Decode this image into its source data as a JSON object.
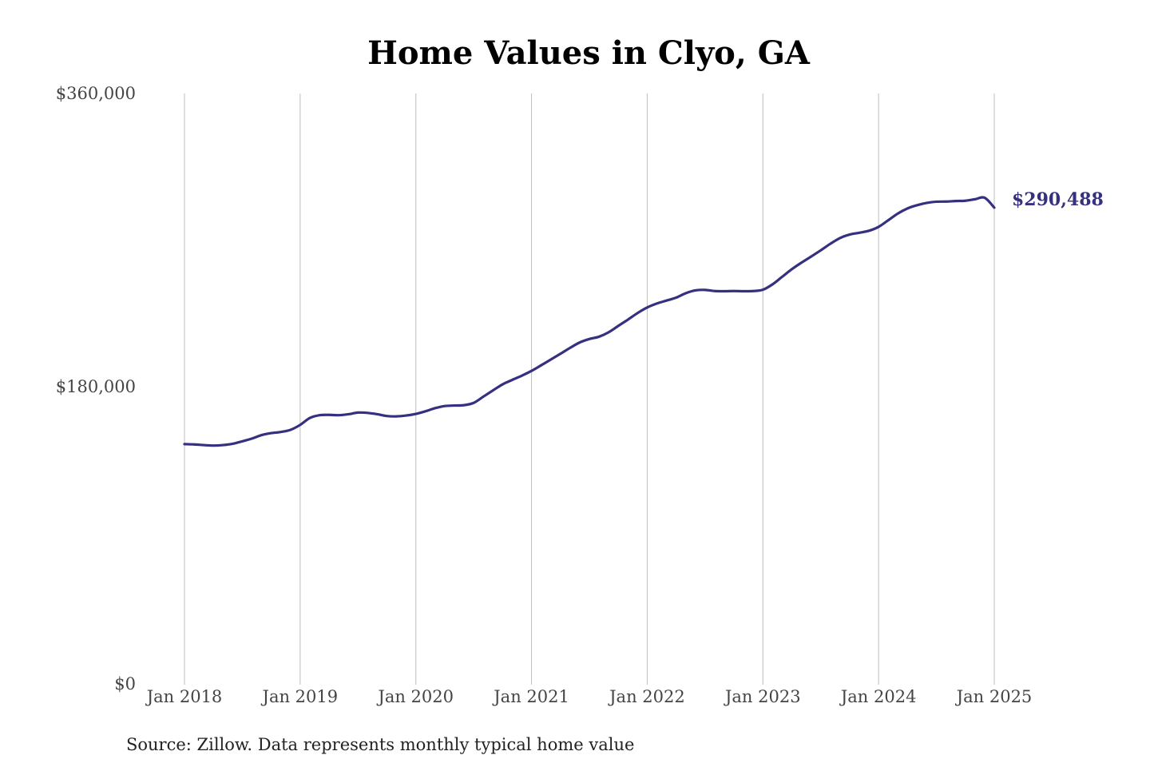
{
  "colors": {
    "line": "#35307f",
    "grid": "#bdbdbd",
    "title": "#000000",
    "tick_text": "#444444"
  },
  "chart_data": {
    "type": "line",
    "title": "Home Values in Clyo, GA",
    "xlabel": "",
    "ylabel": "",
    "source_note": "Source: Zillow. Data represents monthly typical home value",
    "grid": {
      "vertical": true,
      "horizontal": false
    },
    "legend": "none",
    "x_ticks": [
      "Jan 2018",
      "Jan 2019",
      "Jan 2020",
      "Jan 2021",
      "Jan 2022",
      "Jan 2023",
      "Jan 2024",
      "Jan 2025"
    ],
    "y_ticks": [
      "$0",
      "$180,000",
      "$360,000"
    ],
    "ylim": [
      0,
      360000
    ],
    "xlim": [
      "2018-01",
      "2025-01"
    ],
    "end_label": "$290,488",
    "series": [
      {
        "x": [
          "2018-01",
          "2018-02",
          "2018-03",
          "2018-04",
          "2018-05",
          "2018-06",
          "2018-07",
          "2018-08",
          "2018-09",
          "2018-10",
          "2018-11",
          "2018-12",
          "2019-01",
          "2019-02",
          "2019-03",
          "2019-04",
          "2019-05",
          "2019-06",
          "2019-07",
          "2019-08",
          "2019-09",
          "2019-10",
          "2019-11",
          "2019-12",
          "2020-01",
          "2020-02",
          "2020-03",
          "2020-04",
          "2020-05",
          "2020-06",
          "2020-07",
          "2020-08",
          "2020-09",
          "2020-10",
          "2020-11",
          "2020-12",
          "2021-01",
          "2021-02",
          "2021-03",
          "2021-04",
          "2021-05",
          "2021-06",
          "2021-07",
          "2021-08",
          "2021-09",
          "2021-10",
          "2021-11",
          "2021-12",
          "2022-01",
          "2022-02",
          "2022-03",
          "2022-04",
          "2022-05",
          "2022-06",
          "2022-07",
          "2022-08",
          "2022-09",
          "2022-10",
          "2022-11",
          "2022-12",
          "2023-01",
          "2023-02",
          "2023-03",
          "2023-04",
          "2023-05",
          "2023-06",
          "2023-07",
          "2023-08",
          "2023-09",
          "2023-10",
          "2023-11",
          "2023-12",
          "2024-01",
          "2024-02",
          "2024-03",
          "2024-04",
          "2024-05",
          "2024-06",
          "2024-07",
          "2024-08",
          "2024-09",
          "2024-10",
          "2024-11",
          "2024-12",
          "2025-01"
        ],
        "values": [
          146500,
          146300,
          145900,
          145600,
          145900,
          146700,
          148200,
          149900,
          152000,
          153200,
          153900,
          155200,
          158200,
          162400,
          164100,
          164300,
          164100,
          164700,
          165700,
          165500,
          164700,
          163600,
          163400,
          163900,
          164900,
          166500,
          168400,
          169700,
          170000,
          170200,
          171600,
          175400,
          179200,
          182900,
          185600,
          188200,
          191100,
          194500,
          198000,
          201500,
          205100,
          208400,
          210500,
          211900,
          214600,
          218500,
          222300,
          226300,
          229700,
          232100,
          233900,
          235700,
          238400,
          240100,
          240400,
          239700,
          239600,
          239700,
          239600,
          239700,
          240500,
          243800,
          248400,
          253000,
          257000,
          260700,
          264500,
          268500,
          272000,
          274100,
          275200,
          276400,
          278800,
          282800,
          286900,
          290000,
          292000,
          293400,
          294100,
          294200,
          294500,
          294700,
          295600,
          296500,
          290488
        ]
      }
    ]
  }
}
